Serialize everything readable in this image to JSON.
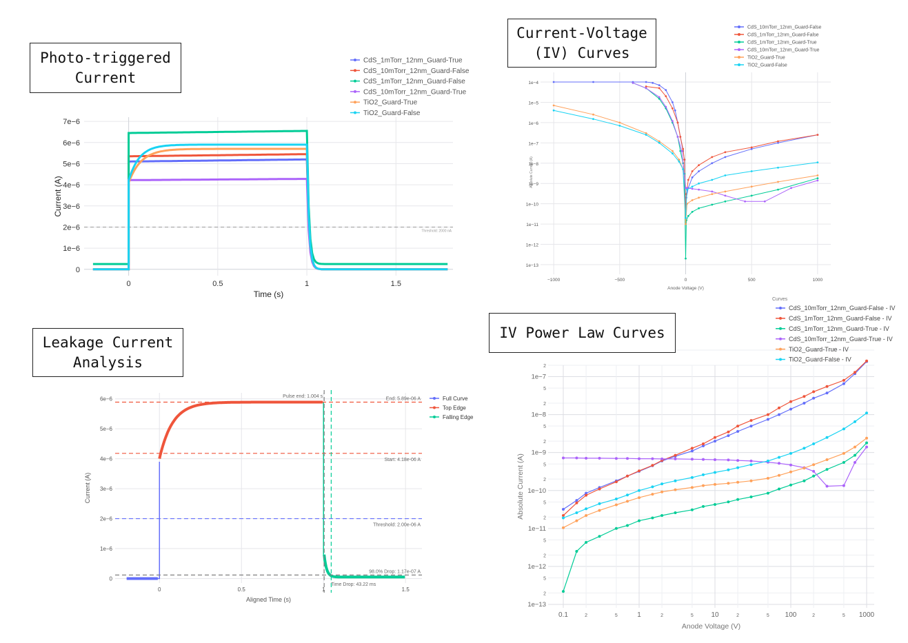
{
  "boxes": {
    "photo": [
      "Photo-triggered",
      "Current"
    ],
    "iv": [
      "Current-Voltage",
      "(IV) Curves"
    ],
    "leak": [
      "Leakage Current",
      "Analysis"
    ],
    "power": [
      "IV Power Law Curves"
    ]
  },
  "colors": {
    "blue": "#636efa",
    "red": "#ef553b",
    "green": "#00cc96",
    "purple": "#ab63fa",
    "orange": "#ffa15a",
    "cyan": "#19d3f3",
    "grid": "#e6e6ea",
    "axis": "#555555"
  },
  "chart_data": [
    {
      "id": "photo",
      "type": "line",
      "xlabel": "Time (s)",
      "ylabel": "Current (A)",
      "xlim": [
        -0.25,
        1.82
      ],
      "ylim": [
        -3e-07,
        7.2e-06
      ],
      "xticks": [
        0,
        0.5,
        1,
        1.5
      ],
      "xtick_labels": [
        "0",
        "0.5",
        "1",
        "1.5"
      ],
      "yticks": [
        0,
        1e-06,
        2e-06,
        3e-06,
        4e-06,
        5e-06,
        6e-06,
        7e-06
      ],
      "ytick_labels": [
        "0",
        "1e−6",
        "2e−6",
        "3e−6",
        "4e−6",
        "5e−6",
        "6e−6",
        "7e−6"
      ],
      "threshold": {
        "value": 2e-06,
        "label": "Threshold: 2000 nA"
      },
      "legend": "top-right",
      "series": [
        {
          "name": "CdS_1mTorr_12nm_Guard-True",
          "color": "blue",
          "base": 0,
          "on": 5.1e-06,
          "end": 5.2e-06,
          "tau": 0,
          "off": 0
        },
        {
          "name": "CdS_10mTorr_12nm_Guard-False",
          "color": "red",
          "base": 0,
          "on": 5.35e-06,
          "end": 5.45e-06,
          "tau": 0,
          "off": 0
        },
        {
          "name": "CdS_1mTorr_12nm_Guard-False",
          "color": "green",
          "base": 2.5e-07,
          "on": 6.45e-06,
          "end": 6.55e-06,
          "tau": 0,
          "off": 2.5e-07
        },
        {
          "name": "CdS_10mTorr_12nm_Guard-True",
          "color": "purple",
          "base": 0,
          "on": 4.22e-06,
          "end": 4.28e-06,
          "tau": 0,
          "off": 0
        },
        {
          "name": "TiO2_Guard-True",
          "color": "orange",
          "base": 0,
          "on": 4.1e-06,
          "end": 5.7e-06,
          "tau": 0.07,
          "off": 0
        },
        {
          "name": "TiO2_Guard-False",
          "color": "cyan",
          "base": 0,
          "on": 4.2e-06,
          "end": 5.9e-06,
          "tau": 0.06,
          "off": 0
        }
      ]
    },
    {
      "id": "iv",
      "type": "line",
      "xlabel": "Anode Voltage (V)",
      "ylabel": "Absolute Current (A)",
      "xlim": [
        -1100,
        1100
      ],
      "ylog": [
        -13,
        -4
      ],
      "xticks": [
        -1000,
        -500,
        0,
        500,
        1000
      ],
      "xtick_labels": [
        "−1000",
        "−500",
        "0",
        "500",
        "1000"
      ],
      "ytick_labels": [
        "1e−13",
        "1e−12",
        "1e−11",
        "1e−10",
        "1e−9",
        "1e−8",
        "1e−7",
        "1e−6",
        "1e−5",
        "1e−4"
      ],
      "legend": "top-right",
      "series": [
        {
          "name": "CdS_10mTorr_12nm_Guard-False",
          "color": "blue",
          "x": [
            -1000,
            -700,
            -400,
            -300,
            -250,
            -200,
            -150,
            -100,
            -80,
            -60,
            -40,
            -20,
            -10,
            0,
            5,
            20,
            50,
            100,
            200,
            300,
            500,
            700,
            1000
          ],
          "y": [
            0.0001,
            0.0001,
            0.0001,
            0.0001,
            9e-05,
            7e-05,
            4e-05,
            1e-05,
            4e-06,
            1e-06,
            2e-07,
            4e-08,
            1.5e-08,
            3e-11,
            2e-10,
            6e-10,
            2e-09,
            4e-09,
            1e-08,
            2e-08,
            5e-08,
            1e-07,
            2.5e-07
          ]
        },
        {
          "name": "CdS_1mTorr_12nm_Guard-False",
          "color": "red",
          "x": [
            -300,
            -200,
            -150,
            -100,
            -60,
            -40,
            -20,
            -10,
            0,
            5,
            20,
            50,
            100,
            200,
            300,
            500,
            700,
            1000
          ],
          "y": [
            6e-05,
            5e-05,
            2e-05,
            5e-06,
            1e-06,
            2e-07,
            5e-08,
            1.5e-08,
            2e-11,
            3e-10,
            1.5e-09,
            4e-09,
            8e-09,
            2e-08,
            3.5e-08,
            6e-08,
            1.2e-07,
            2.5e-07
          ]
        },
        {
          "name": "CdS_1mTorr_12nm_Guard-True",
          "color": "green",
          "x": [
            -400,
            -300,
            -200,
            -150,
            -100,
            -60,
            -40,
            -20,
            -10,
            0,
            5,
            20,
            50,
            100,
            200,
            300,
            500,
            700,
            1000
          ],
          "y": [
            9e-05,
            5e-05,
            1.5e-05,
            5e-06,
            1e-06,
            2e-07,
            4e-08,
            1e-08,
            3e-09,
            2e-13,
            1.5e-11,
            2.5e-11,
            4e-11,
            6e-11,
            9e-11,
            1.3e-10,
            2.5e-10,
            5e-10,
            1.8e-09
          ]
        },
        {
          "name": "CdS_10mTorr_12nm_Guard-True",
          "color": "purple",
          "x": [
            -400,
            -300,
            -200,
            -150,
            -100,
            -60,
            -30,
            0,
            10,
            50,
            100,
            200,
            300,
            450,
            600,
            800,
            1000
          ],
          "y": [
            9e-05,
            5e-05,
            1.8e-05,
            6e-06,
            1.2e-06,
            2e-07,
            4e-08,
            6e-10,
            6e-10,
            5.5e-10,
            5e-10,
            4e-10,
            2.5e-10,
            1.3e-10,
            1.3e-10,
            6e-10,
            1.4e-09
          ]
        },
        {
          "name": "TiO2_Guard-True",
          "color": "orange",
          "x": [
            -1000,
            -700,
            -500,
            -300,
            -200,
            -100,
            -50,
            -20,
            0,
            10,
            50,
            100,
            200,
            300,
            500,
            700,
            1000
          ],
          "y": [
            7e-06,
            2.5e-06,
            1e-06,
            3e-07,
            1.2e-07,
            4e-08,
            1.5e-08,
            5e-09,
            1e-11,
            1e-10,
            1.5e-10,
            2e-10,
            3e-10,
            4e-10,
            7e-10,
            1.2e-09,
            2.5e-09
          ]
        },
        {
          "name": "TiO2_Guard-False",
          "color": "cyan",
          "x": [
            -1000,
            -700,
            -500,
            -300,
            -200,
            -100,
            -50,
            -20,
            0,
            10,
            50,
            100,
            200,
            300,
            500,
            700,
            1000
          ],
          "y": [
            4e-06,
            1.5e-06,
            7e-07,
            2.5e-07,
            1e-07,
            3e-08,
            1.2e-08,
            5e-09,
            2e-11,
            5e-10,
            7e-10,
            1e-09,
            1.5e-09,
            2.5e-09,
            4e-09,
            6e-09,
            1.1e-08
          ]
        }
      ]
    },
    {
      "id": "leak",
      "type": "line",
      "xlabel": "Aligned Time (s)",
      "ylabel": "Current (A)",
      "xlim": [
        -0.27,
        1.6
      ],
      "ylim": [
        -1.5e-07,
        6.2e-06
      ],
      "xticks": [
        0,
        0.5,
        1,
        1.5
      ],
      "xtick_labels": [
        "0",
        "0.5",
        "1",
        "1.5"
      ],
      "yticks": [
        0,
        1e-06,
        2e-06,
        3e-06,
        4e-06,
        5e-06,
        6e-06
      ],
      "ytick_labels": [
        "0",
        "1e−6",
        "2e−6",
        "3e−6",
        "4e−6",
        "5e−6",
        "6e−6"
      ],
      "legend": "top-right",
      "legend_items": [
        {
          "name": "Full Curve",
          "color": "blue"
        },
        {
          "name": "Top Edge",
          "color": "red"
        },
        {
          "name": "Falling Edge",
          "color": "green"
        }
      ],
      "hlines": [
        {
          "value": 5.89e-06,
          "color": "red",
          "label": "End: 5.89e-06 A"
        },
        {
          "value": 4.18e-06,
          "color": "red",
          "label": "Start: 4.18e-06 A"
        },
        {
          "value": 2e-06,
          "color": "blue",
          "label": "Threshold: 2.00e-06 A"
        },
        {
          "value": 1.17e-07,
          "color": "grey",
          "label": "98.0% Drop: 1.17e-07 A"
        }
      ],
      "vlines": [
        {
          "value": 1.004,
          "color": "grey",
          "label": "Pulse end: 1.004 s"
        },
        {
          "value": 1.047,
          "color": "green",
          "label": "Time Drop: 43.22 ms"
        }
      ]
    },
    {
      "id": "power",
      "type": "line",
      "xlabel": "Anode Voltage (V)",
      "ylabel": "Absolute Current (A)",
      "xlog": [
        -1.2,
        3.1
      ],
      "ylog": [
        -13,
        -6.7
      ],
      "legend": "top-right",
      "legend_title": "Curves",
      "x_major_labels": [
        "0.1",
        "1",
        "10",
        "100",
        "1000"
      ],
      "x_minor_labels": [
        "2",
        "5"
      ],
      "y_major_labels": [
        "1e−13",
        "1e−12",
        "1e−11",
        "1e−10",
        "1e−9",
        "1e−8",
        "1e−7"
      ],
      "y_minor_labels": [
        "2",
        "5"
      ],
      "x": [
        0.1,
        0.15,
        0.2,
        0.3,
        0.5,
        0.7,
        1,
        1.5,
        2,
        3,
        5,
        7,
        10,
        15,
        20,
        30,
        50,
        70,
        100,
        150,
        200,
        300,
        500,
        700,
        1000
      ],
      "series": [
        {
          "name": "CdS_10mTorr_12nm_Guard-False - IV",
          "color": "blue",
          "y": [
            3.2e-11,
            5.5e-11,
            8.5e-11,
            1.2e-10,
            1.8e-10,
            2.4e-10,
            3.2e-10,
            4.5e-10,
            6e-10,
            8e-10,
            1.1e-09,
            1.5e-09,
            2e-09,
            2.8e-09,
            3.6e-09,
            5e-09,
            7.5e-09,
            1e-08,
            1.4e-08,
            2e-08,
            2.7e-08,
            3.7e-08,
            6.5e-08,
            1.2e-07,
            2.5e-07
          ]
        },
        {
          "name": "CdS_1mTorr_12nm_Guard-False - IV",
          "color": "red",
          "y": [
            2.2e-11,
            4.7e-11,
            7.5e-11,
            1.1e-10,
            1.7e-10,
            2.4e-10,
            3.3e-10,
            4.6e-10,
            6.2e-10,
            8.5e-10,
            1.3e-09,
            1.7e-09,
            2.5e-09,
            3.5e-09,
            5e-09,
            7e-09,
            1e-08,
            1.5e-08,
            2.2e-08,
            3e-08,
            4e-08,
            5.5e-08,
            8e-08,
            1.3e-07,
            2.6e-07
          ]
        },
        {
          "name": "CdS_1mTorr_12nm_Guard-True - IV",
          "color": "green",
          "y": [
            2.2e-13,
            2.5e-12,
            4.3e-12,
            6.2e-12,
            1e-11,
            1.2e-11,
            1.6e-11,
            1.9e-11,
            2.2e-11,
            2.6e-11,
            3.1e-11,
            3.8e-11,
            4.3e-11,
            5e-11,
            5.8e-11,
            6.8e-11,
            8.5e-11,
            1.1e-10,
            1.4e-10,
            1.8e-10,
            2.4e-10,
            3.6e-10,
            5.5e-10,
            8.5e-10,
            1.8e-09
          ]
        },
        {
          "name": "CdS_10mTorr_12nm_Guard-True - IV",
          "color": "purple",
          "y": [
            7.2e-10,
            7.2e-10,
            7.1e-10,
            7.1e-10,
            7e-10,
            7e-10,
            6.9e-10,
            6.9e-10,
            6.8e-10,
            6.8e-10,
            6.7e-10,
            6.6e-10,
            6.5e-10,
            6.4e-10,
            6.2e-10,
            6e-10,
            5.6e-10,
            5.2e-10,
            4.7e-10,
            4e-10,
            3.2e-10,
            1.3e-10,
            1.35e-10,
            5.5e-10,
            1.4e-09
          ]
        },
        {
          "name": "TiO2_Guard-True - IV",
          "color": "orange",
          "y": [
            1.05e-11,
            1.6e-11,
            2.2e-11,
            3e-11,
            4.2e-11,
            5.2e-11,
            6.5e-11,
            8e-11,
            9.2e-11,
            1.05e-10,
            1.2e-10,
            1.35e-10,
            1.45e-10,
            1.55e-10,
            1.65e-10,
            1.8e-10,
            2.1e-10,
            2.5e-10,
            3.1e-10,
            3.9e-10,
            4.8e-10,
            6.5e-10,
            9.5e-10,
            1.4e-09,
            2.4e-09
          ]
        },
        {
          "name": "TiO2_Guard-False - IV",
          "color": "cyan",
          "y": [
            1.9e-11,
            2.6e-11,
            3.3e-11,
            4.5e-11,
            6e-11,
            7.6e-11,
            1e-10,
            1.25e-10,
            1.5e-10,
            1.8e-10,
            2.2e-10,
            2.6e-10,
            3e-10,
            3.5e-10,
            4e-10,
            4.8e-10,
            6e-10,
            7.5e-10,
            9.5e-10,
            1.3e-09,
            1.7e-09,
            2.5e-09,
            4.2e-09,
            6.5e-09,
            1.1e-08
          ]
        }
      ]
    }
  ]
}
